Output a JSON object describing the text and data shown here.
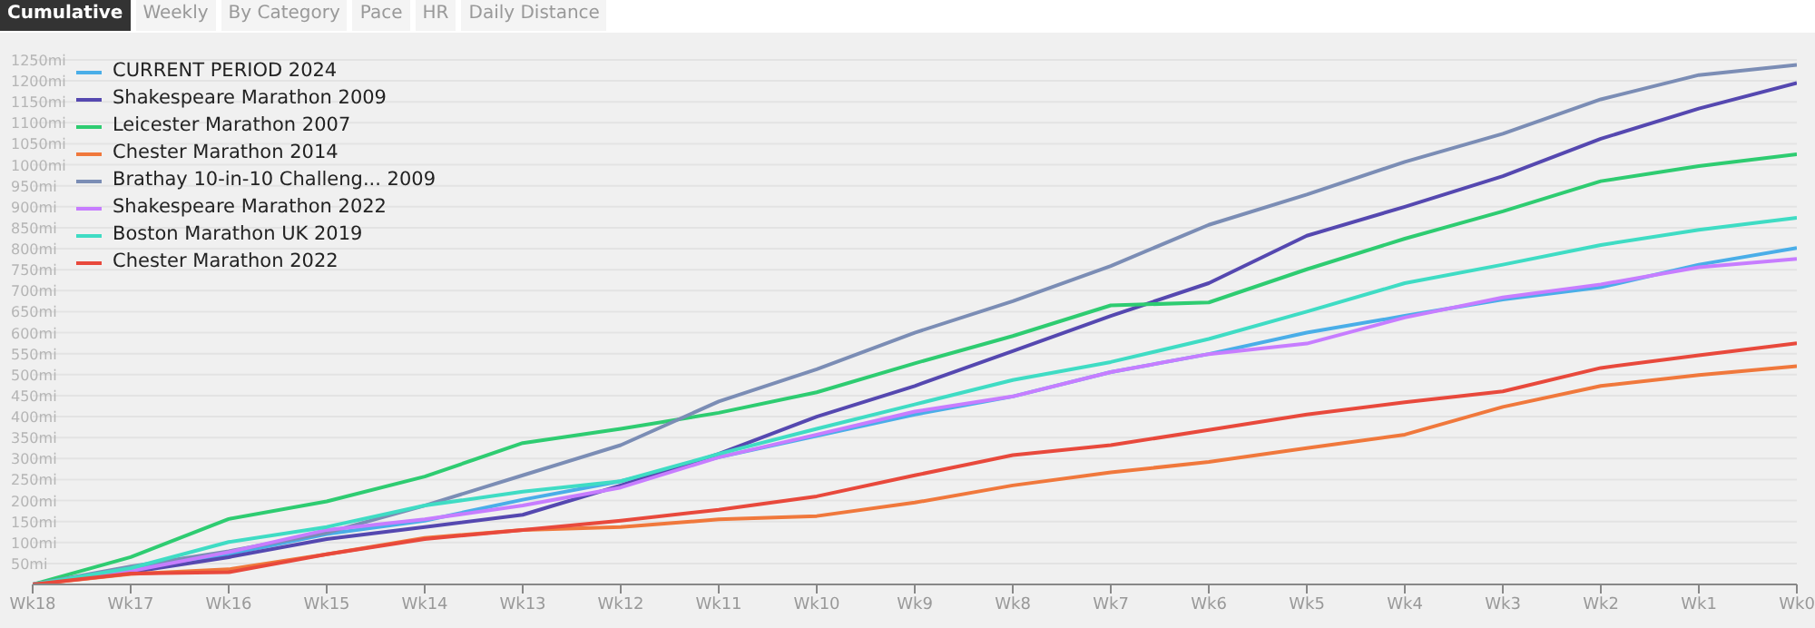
{
  "chart_data": {
    "type": "line",
    "annotations": [
      "Cumulative",
      "Weekly",
      "By Category",
      "Pace",
      "HR",
      "Daily Distance"
    ],
    "categories": [
      "Wk18",
      "Wk17",
      "Wk16",
      "Wk15",
      "Wk14",
      "Wk13",
      "Wk12",
      "Wk11",
      "Wk10",
      "Wk9",
      "Wk8",
      "Wk7",
      "Wk6",
      "Wk5",
      "Wk4",
      "Wk3",
      "Wk2",
      "Wk1",
      "Wk0"
    ],
    "ylim": [
      0,
      1250
    ],
    "yticks": [
      {
        "value": 50,
        "label": "50mi"
      },
      {
        "value": 100,
        "label": "100mi"
      },
      {
        "value": 150,
        "label": "150mi"
      },
      {
        "value": 200,
        "label": "200mi"
      },
      {
        "value": 250,
        "label": "250mi"
      },
      {
        "value": 300,
        "label": "300mi"
      },
      {
        "value": 350,
        "label": "350mi"
      },
      {
        "value": 400,
        "label": "400mi"
      },
      {
        "value": 450,
        "label": "450mi"
      },
      {
        "value": 500,
        "label": "500mi"
      },
      {
        "value": 550,
        "label": "550mi"
      },
      {
        "value": 600,
        "label": "600mi"
      },
      {
        "value": 650,
        "label": "650mi"
      },
      {
        "value": 700,
        "label": "700mi"
      },
      {
        "value": 750,
        "label": "750mi"
      },
      {
        "value": 800,
        "label": "800mi"
      },
      {
        "value": 850,
        "label": "850mi"
      },
      {
        "value": 900,
        "label": "900mi"
      },
      {
        "value": 950,
        "label": "950mi"
      },
      {
        "value": 1000,
        "label": "1000mi"
      },
      {
        "value": 1050,
        "label": "1050mi"
      },
      {
        "value": 1100,
        "label": "1100mi"
      },
      {
        "value": 1150,
        "label": "1150mi"
      },
      {
        "value": 1200,
        "label": "1200mi"
      },
      {
        "value": 1250,
        "label": "1250mi"
      }
    ],
    "grid": "y",
    "legend": "top left",
    "marker": "none",
    "line_style": "solid",
    "series": [
      {
        "name": "CURRENT PERIOD 2024",
        "color": "#4aaee8",
        "values": [
          0,
          36,
          72,
          120,
          152,
          202,
          246,
          303,
          354,
          405,
          448,
          506,
          549,
          600,
          640,
          679,
          708,
          762,
          802
        ]
      },
      {
        "name": "Shakespeare Marathon 2009",
        "color": "#5548b0",
        "values": [
          0,
          29,
          65,
          108,
          137,
          166,
          236,
          311,
          400,
          473,
          556,
          640,
          718,
          831,
          900,
          973,
          1062,
          1134,
          1195
        ]
      },
      {
        "name": "Leicester Marathon 2007",
        "color": "#2ecc71",
        "values": [
          0,
          65,
          156,
          198,
          257,
          337,
          371,
          409,
          458,
          527,
          592,
          665,
          672,
          751,
          824,
          889,
          961,
          997,
          1025
        ]
      },
      {
        "name": "Chester Marathon 2014",
        "color": "#f0783c",
        "values": [
          0,
          25,
          36,
          72,
          111,
          130,
          137,
          155,
          163,
          195,
          236,
          267,
          292,
          325,
          357,
          423,
          473,
          499,
          520
        ]
      },
      {
        "name": "Brathay 10-in-10 Challeng... 2009",
        "color": "#7b8db5",
        "values": [
          0,
          43,
          79,
          123,
          188,
          260,
          332,
          436,
          513,
          600,
          675,
          759,
          857,
          929,
          1007,
          1074,
          1156,
          1214,
          1238
        ]
      },
      {
        "name": "Shakespeare Marathon 2022",
        "color": "#c77dff",
        "values": [
          0,
          32,
          77,
          130,
          155,
          188,
          231,
          303,
          357,
          412,
          448,
          506,
          549,
          574,
          636,
          684,
          715,
          756,
          776
        ]
      },
      {
        "name": "Boston Marathon UK 2019",
        "color": "#3fdcc4",
        "values": [
          0,
          39,
          101,
          137,
          188,
          221,
          246,
          311,
          371,
          429,
          487,
          530,
          585,
          650,
          718,
          762,
          809,
          845,
          874
        ]
      },
      {
        "name": "Chester Marathon 2022",
        "color": "#e8493c",
        "values": [
          0,
          26,
          29,
          72,
          108,
          130,
          152,
          178,
          210,
          260,
          308,
          332,
          368,
          405,
          434,
          460,
          516,
          546,
          575
        ]
      }
    ]
  }
}
